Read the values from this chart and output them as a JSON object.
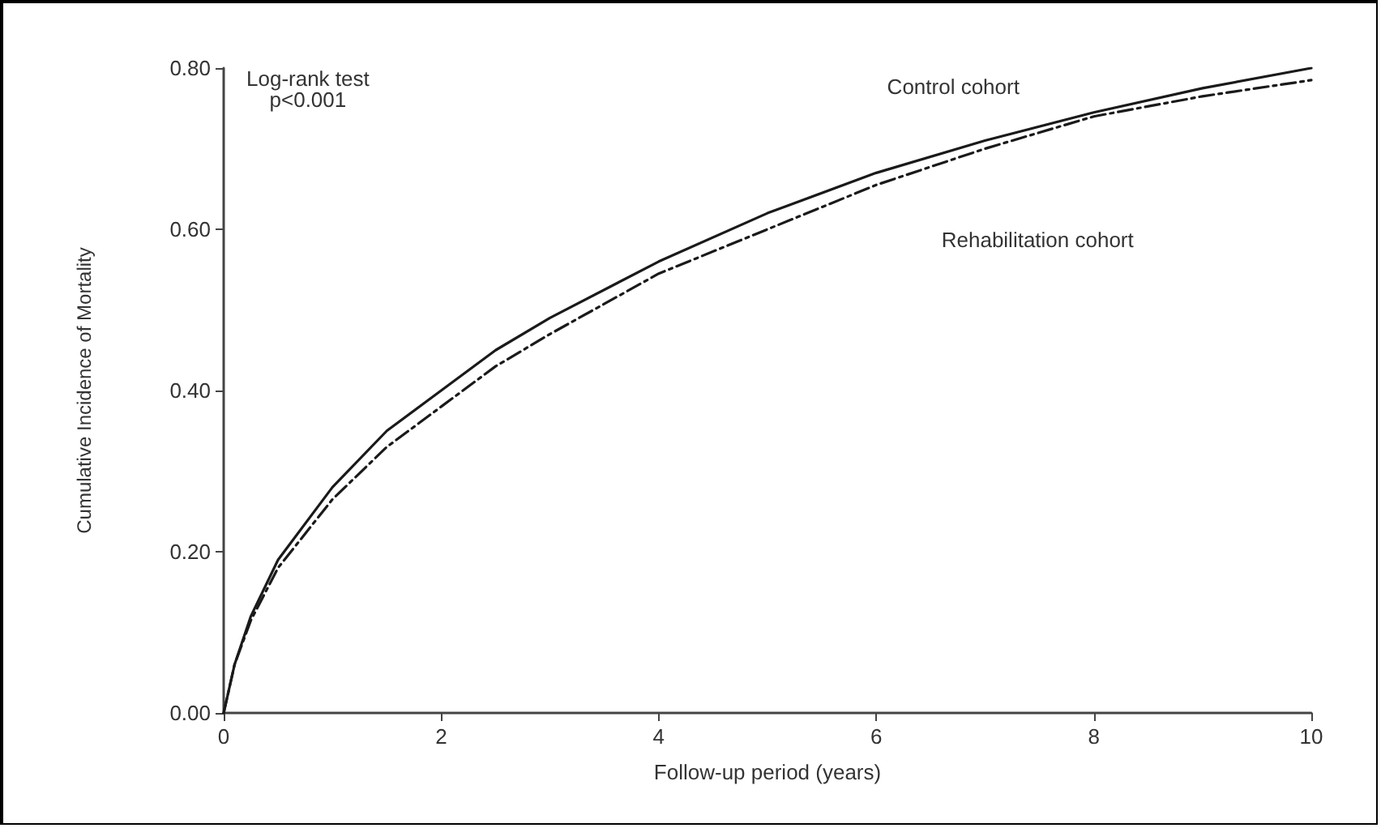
{
  "chart_data": {
    "type": "line",
    "xlabel": "Follow-up period (years)",
    "ylabel": "Cumulative Incidence of Mortality",
    "annotations": [
      "Log-rank test\np<0.001"
    ],
    "series": [
      {
        "name": "Control cohort",
        "color": "#1a1a1a",
        "line_style": "solid",
        "x": [
          0,
          0.1,
          0.25,
          0.5,
          1,
          1.5,
          2,
          2.5,
          3,
          4,
          5,
          6,
          7,
          8,
          9,
          10
        ],
        "values": [
          0,
          0.06,
          0.12,
          0.19,
          0.28,
          0.35,
          0.4,
          0.45,
          0.49,
          0.56,
          0.62,
          0.67,
          0.71,
          0.745,
          0.775,
          0.8
        ]
      },
      {
        "name": "Rehabilitation cohort",
        "color": "#1a1a1a",
        "line_style": "dashed",
        "x": [
          0,
          0.1,
          0.25,
          0.5,
          1,
          1.5,
          2,
          2.5,
          3,
          4,
          5,
          6,
          7,
          8,
          9,
          10
        ],
        "values": [
          0,
          0.06,
          0.115,
          0.18,
          0.265,
          0.33,
          0.38,
          0.43,
          0.47,
          0.545,
          0.6,
          0.655,
          0.7,
          0.74,
          0.765,
          0.785
        ]
      }
    ],
    "xlim": [
      0,
      10
    ],
    "xticks": [
      0,
      2,
      4,
      6,
      8,
      10
    ],
    "ylim": [
      0,
      0.8
    ],
    "yticks": [
      {
        "value": 0,
        "label": "0.00"
      },
      {
        "value": 0.2,
        "label": "0.20"
      },
      {
        "value": 0.4,
        "label": "0.40"
      },
      {
        "value": 0.6,
        "label": "0.60"
      },
      {
        "value": 0.8,
        "label": "0.80"
      }
    ],
    "grid": false,
    "legend": false,
    "marker": "none"
  }
}
